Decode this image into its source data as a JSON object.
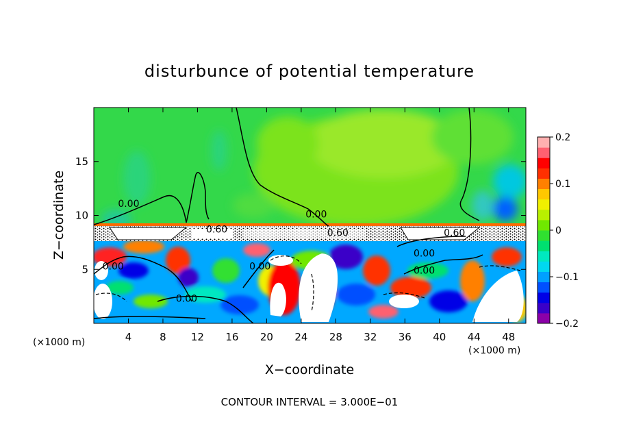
{
  "chart_data": {
    "type": "heatmap",
    "title": "disturbunce of potential temperature",
    "xlabel": "X−coordinate",
    "ylabel": "Z−coordinate",
    "x_unit": "(×1000 m)",
    "x_unit_right": "(×1000 m)",
    "footer": "CONTOUR INTERVAL = 3.000E−01",
    "xlim": [
      0,
      50
    ],
    "ylim": [
      0,
      20
    ],
    "x_ticks": [
      4,
      8,
      12,
      16,
      20,
      24,
      28,
      32,
      36,
      40,
      44,
      48
    ],
    "y_ticks": [
      5,
      10,
      15
    ],
    "colorbar": {
      "range": [
        -0.2,
        0.2
      ],
      "ticks": [
        0.2,
        0.1,
        0,
        -0.1,
        -0.2
      ],
      "tick_labels": [
        "0.2",
        "0.1",
        "0",
        "−0.1",
        "−0.2"
      ],
      "colors": [
        "#8b00a8",
        "#3a00c8",
        "#0000e6",
        "#0050ff",
        "#00a0ff",
        "#00d8f0",
        "#00e8c0",
        "#00e070",
        "#30e030",
        "#70e800",
        "#b8f000",
        "#f0f000",
        "#ffc800",
        "#ff8000",
        "#ff3000",
        "#ff0000",
        "#ff6070",
        "#ffb0b0"
      ]
    },
    "contour_labels": [
      {
        "text": "0.00",
        "x": 2.8,
        "z": 10.8
      },
      {
        "text": "0.00",
        "x": 24.5,
        "z": 9.8
      },
      {
        "text": "0.60",
        "x": 13.0,
        "z": 8.4
      },
      {
        "text": "0.60",
        "x": 27.0,
        "z": 8.1
      },
      {
        "text": "0.60",
        "x": 40.5,
        "z": 8.1
      },
      {
        "text": "0.00",
        "x": 1.0,
        "z": 5.0
      },
      {
        "text": "0.00",
        "x": 9.5,
        "z": 2.0
      },
      {
        "text": "0.00",
        "x": 18.0,
        "z": 5.0
      },
      {
        "text": "0.00",
        "x": 37.0,
        "z": 6.2
      },
      {
        "text": "0.00",
        "x": 37.0,
        "z": 4.6
      }
    ]
  }
}
